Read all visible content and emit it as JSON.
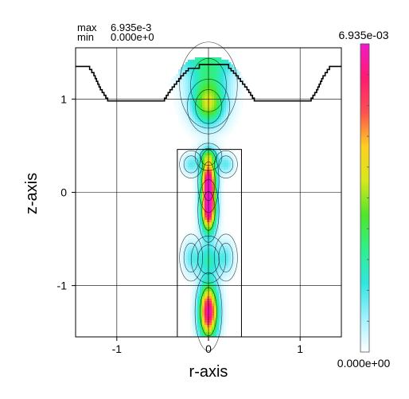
{
  "chart_data": {
    "type": "heatmap",
    "header": {
      "max_label": "max",
      "max_value": "6.935e-3",
      "min_label": "min",
      "min_value": "0.000e+0"
    },
    "xlabel": "r-axis",
    "ylabel": "z-axis",
    "xlim": [
      -1.45,
      1.45
    ],
    "ylim": [
      -1.55,
      1.55
    ],
    "x_ticks": [
      {
        "value": -1,
        "label": "-1"
      },
      {
        "value": 0,
        "label": "0"
      },
      {
        "value": 1,
        "label": "1"
      }
    ],
    "y_ticks": [
      {
        "value": 1,
        "label": "1"
      },
      {
        "value": 0,
        "label": "0"
      },
      {
        "value": -1,
        "label": "-1"
      }
    ],
    "grid": true,
    "colorbar": {
      "max_label": "6.935e-03",
      "min_label": "0.000e+00",
      "max": 0.006935,
      "min": 0,
      "colors": [
        "#ffffff",
        "#a0f0ff",
        "#30e6e0",
        "#2ef08a",
        "#4ee62a",
        "#d6e81a",
        "#ffd020",
        "#ff5050",
        "#ff1a70",
        "#f01ac8"
      ]
    },
    "field_peaks": [
      {
        "r": 0,
        "z": 1.15,
        "amp": 0.0022,
        "sr": 0.15,
        "sz": 0.22
      },
      {
        "r": 0,
        "z": 0.92,
        "amp": 0.0026,
        "sr": 0.11,
        "sz": 0.14
      },
      {
        "r": 0,
        "z": 0.12,
        "amp": 0.0066,
        "sr": 0.055,
        "sz": 0.16
      },
      {
        "r": 0,
        "z": -0.2,
        "amp": 0.0065,
        "sr": 0.055,
        "sz": 0.16
      },
      {
        "r": 0,
        "z": 0.38,
        "amp": 0.0022,
        "sr": 0.07,
        "sz": 0.07
      },
      {
        "r": 0,
        "z": -0.72,
        "amp": 0.0018,
        "sr": 0.09,
        "sz": 0.12
      },
      {
        "r": 0,
        "z": -1.28,
        "amp": 0.0068,
        "sr": 0.07,
        "sz": 0.2
      },
      {
        "r": -0.19,
        "z": 0.3,
        "amp": 0.0012,
        "sr": 0.06,
        "sz": 0.07
      },
      {
        "r": 0.19,
        "z": 0.3,
        "amp": 0.0012,
        "sr": 0.06,
        "sz": 0.07
      },
      {
        "r": -0.19,
        "z": -0.7,
        "amp": 0.0011,
        "sr": 0.06,
        "sz": 0.12
      },
      {
        "r": 0.19,
        "z": -0.7,
        "amp": 0.0011,
        "sr": 0.06,
        "sz": 0.12
      },
      {
        "r": 0,
        "z": 1.45,
        "amp": 0.0014,
        "sr": 0.5,
        "sz": 0.12
      }
    ],
    "boundary": {
      "top_profile": [
        [
          -1.45,
          1.35
        ],
        [
          -1.32,
          1.35
        ],
        [
          -1.25,
          1.25
        ],
        [
          -1.18,
          1.1
        ],
        [
          -1.1,
          0.98
        ],
        [
          -0.5,
          0.98
        ],
        [
          -0.42,
          1.1
        ],
        [
          -0.3,
          1.25
        ],
        [
          -0.22,
          1.33
        ],
        [
          -0.1,
          1.37
        ],
        [
          0.1,
          1.37
        ],
        [
          0.22,
          1.33
        ],
        [
          0.3,
          1.25
        ],
        [
          0.42,
          1.1
        ],
        [
          0.5,
          0.98
        ],
        [
          1.1,
          0.98
        ],
        [
          1.18,
          1.1
        ],
        [
          1.25,
          1.25
        ],
        [
          1.32,
          1.35
        ],
        [
          1.45,
          1.35
        ]
      ],
      "rod": {
        "r_min": -0.34,
        "r_max": 0.36,
        "z_min": -1.55,
        "z_max": 0.46
      }
    }
  }
}
